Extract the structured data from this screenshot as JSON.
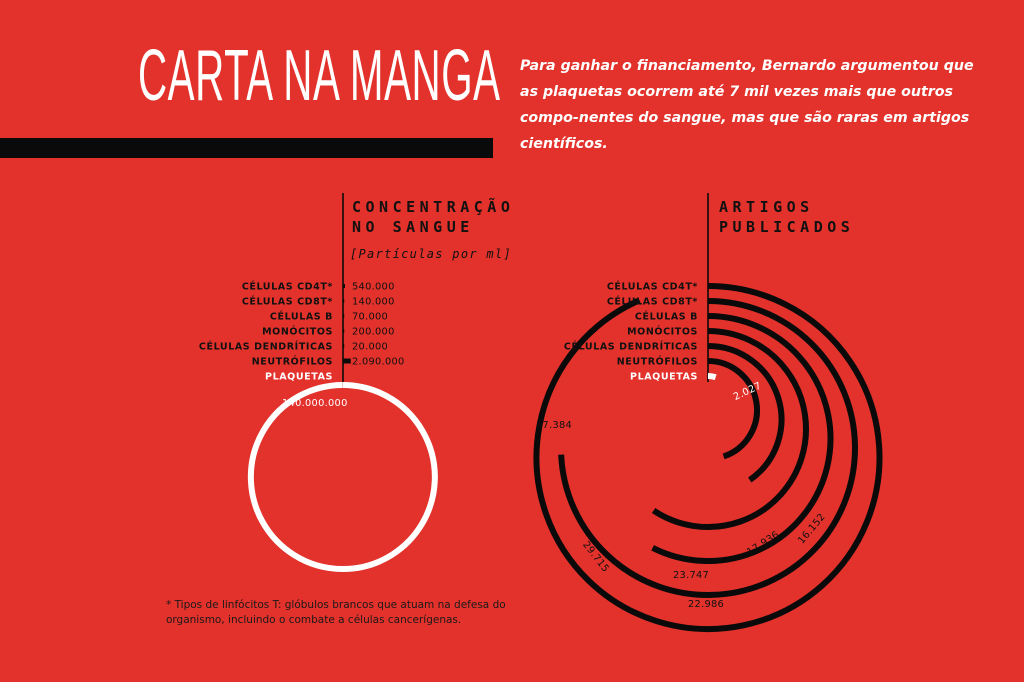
{
  "title": "CARTA NA MANGA",
  "intro": "Para ganhar o financiamento, Bernardo argumentou que as plaquetas ocorrem até 7 mil vezes mais que outros compo-nentes do sangue, mas que são raras em artigos científicos.",
  "footnote": "* Tipos de linfócitos T: glóbulos brancos que atuam na defesa do organismo, incluindo o combate a células cancerígenas.",
  "colors": {
    "background": "#e3312b",
    "ink": "#0a0a0a",
    "highlight": "#ffffff"
  },
  "chart_data": [
    {
      "type": "radial",
      "title": [
        "CONCENTRAÇÃO",
        "NO SANGUE"
      ],
      "subtitle": "[Partículas por ml]",
      "categories": [
        "CÉLULAS CD4T*",
        "CÉLULAS CD8T*",
        "CÉLULAS B",
        "MONÓCITOS",
        "CÉLULAS DENDRÍTICAS",
        "NEUTRÓFILOS",
        "PLAQUETAS"
      ],
      "values": [
        540000,
        140000,
        70000,
        200000,
        20000,
        2090000,
        140000000
      ],
      "labels": [
        "540.000",
        "140.000",
        "70.000",
        "200.000",
        "20.000",
        "2.090.000",
        "140.000.000"
      ],
      "max": 140000000,
      "highlight": "PLAQUETAS"
    },
    {
      "type": "radial",
      "title": [
        "ARTIGOS",
        "PUBLICADOS"
      ],
      "categories": [
        "CÉLULAS CD4T*",
        "CÉLULAS CD8T*",
        "CÉLULAS B",
        "MONÓCITOS",
        "CÉLULAS DENDRÍTICAS",
        "NEUTRÓFILOS",
        "PLAQUETAS"
      ],
      "values": [
        37384,
        29715,
        22986,
        23747,
        16152,
        17936,
        2027
      ],
      "labels": [
        "37.384",
        "29.715",
        "22.986",
        "23.747",
        "16.152",
        "17.936",
        "2.027"
      ],
      "max": 40000,
      "highlight": "PLAQUETAS"
    }
  ]
}
